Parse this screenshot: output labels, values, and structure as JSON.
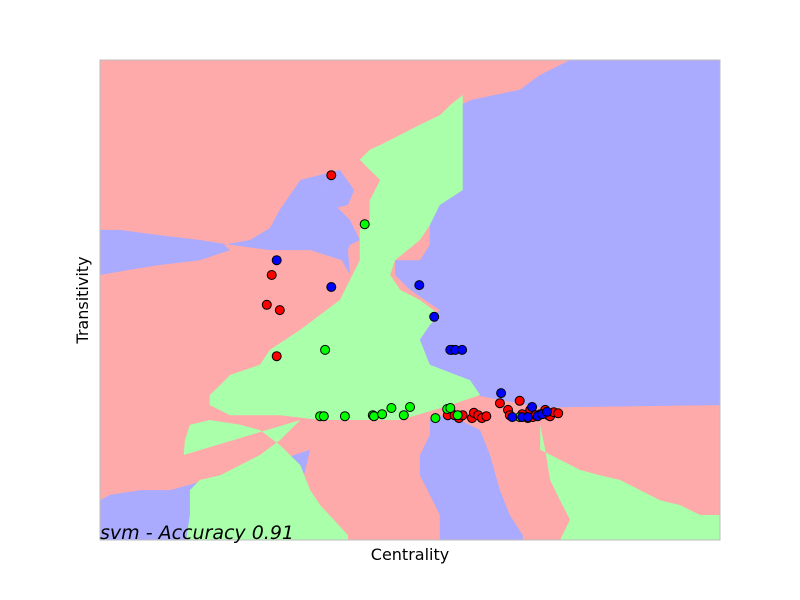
{
  "chart_data": {
    "type": "scatter",
    "title": "",
    "xlabel": "Centrality",
    "ylabel": "Transitivity",
    "annotation": "svm - Accuracy 0.91",
    "xticks_visible": false,
    "yticks_visible": false,
    "grid": false,
    "legend": "none",
    "xlim": [
      0,
      1
    ],
    "ylim": [
      0,
      1
    ],
    "class_colors": {
      "red": "#ff0000",
      "green": "#00ff00",
      "blue": "#0000ff"
    },
    "region_colors": {
      "red": "#ffaaaa",
      "green": "#aaffaa",
      "blue": "#aaaaff"
    },
    "decision_regions": [
      {
        "class": "blue",
        "polygon": [
          [
            0.758,
            1
          ],
          [
            1,
            1
          ],
          [
            1,
            0.281
          ],
          [
            0.71,
            0.276
          ],
          [
            0.613,
            0.3
          ],
          [
            0.548,
            0.323
          ],
          [
            0.516,
            0.344
          ],
          [
            0.5,
            0.417
          ],
          [
            0.516,
            0.448
          ],
          [
            0.548,
            0.479
          ],
          [
            0.5,
            0.521
          ],
          [
            0.476,
            0.552
          ],
          [
            0.476,
            0.583
          ],
          [
            0.516,
            0.583
          ],
          [
            0.532,
            0.615
          ],
          [
            0.532,
            0.656
          ],
          [
            0.516,
            0.698
          ],
          [
            0.548,
            0.729
          ],
          [
            0.58,
            0.76
          ],
          [
            0.581,
            0.813
          ],
          [
            0.581,
            0.906
          ],
          [
            0.6,
            0.917
          ],
          [
            0.677,
            0.938
          ],
          [
            0.71,
            0.969
          ]
        ]
      },
      {
        "class": "blue",
        "polygon": [
          [
            0.323,
            0.75
          ],
          [
            0.387,
            0.771
          ],
          [
            0.41,
            0.729
          ],
          [
            0.4,
            0.698
          ],
          [
            0.368,
            0.688
          ],
          [
            0.355,
            0.656
          ],
          [
            0.339,
            0.604
          ],
          [
            0.39,
            0.583
          ],
          [
            0.403,
            0.552
          ],
          [
            0.4,
            0.604
          ],
          [
            0.41,
            0.646
          ],
          [
            0.371,
            0.708
          ],
          [
            0.355,
            0.74
          ]
        ]
      },
      {
        "class": "blue",
        "polygon": [
          [
            0,
            0.646
          ],
          [
            0.065,
            0.635
          ],
          [
            0.129,
            0.625
          ],
          [
            0.2,
            0.615
          ],
          [
            0.242,
            0.625
          ],
          [
            0.274,
            0.65
          ],
          [
            0.29,
            0.688
          ],
          [
            0.323,
            0.75
          ],
          [
            0.355,
            0.74
          ],
          [
            0.371,
            0.708
          ],
          [
            0.403,
            0.667
          ],
          [
            0.419,
            0.625
          ],
          [
            0.387,
            0.604
          ],
          [
            0.339,
            0.604
          ],
          [
            0.274,
            0.604
          ],
          [
            0.21,
            0.615
          ],
          [
            0.161,
            0.625
          ],
          [
            0.129,
            0.625
          ],
          [
            0.081,
            0.625
          ],
          [
            0.032,
            0.625
          ],
          [
            0,
            0.625
          ]
        ]
      },
      {
        "class": "blue",
        "polygon": [
          [
            0,
            0.646
          ],
          [
            0.032,
            0.646
          ],
          [
            0.097,
            0.635
          ],
          [
            0.161,
            0.625
          ],
          [
            0.2,
            0.615
          ],
          [
            0.21,
            0.604
          ],
          [
            0.161,
            0.583
          ],
          [
            0.097,
            0.573
          ],
          [
            0.048,
            0.563
          ],
          [
            0,
            0.552
          ]
        ]
      },
      {
        "class": "blue",
        "polygon": [
          [
            0,
            0
          ],
          [
            0.4,
            0
          ],
          [
            0.4,
            0.01
          ],
          [
            0.323,
            0.104
          ],
          [
            0.339,
            0.188
          ],
          [
            0.29,
            0.167
          ],
          [
            0.194,
            0.135
          ],
          [
            0.145,
            0.115
          ],
          [
            0.113,
            0.104
          ],
          [
            0.065,
            0.104
          ],
          [
            0.016,
            0.094
          ],
          [
            0,
            0.083
          ]
        ]
      },
      {
        "class": "blue",
        "polygon": [
          [
            0.548,
            0
          ],
          [
            0.682,
            0
          ],
          [
            0.682,
            0.01
          ],
          [
            0.661,
            0.052
          ],
          [
            0.645,
            0.104
          ],
          [
            0.629,
            0.177
          ],
          [
            0.613,
            0.229
          ],
          [
            0.58,
            0.25
          ],
          [
            0.548,
            0.26
          ],
          [
            0.532,
            0.25
          ],
          [
            0.532,
            0.219
          ],
          [
            0.516,
            0.177
          ],
          [
            0.516,
            0.135
          ],
          [
            0.532,
            0.094
          ],
          [
            0.548,
            0.052
          ]
        ]
      },
      {
        "class": "green",
        "polygon": [
          [
            0.585,
            0.927
          ],
          [
            0.585,
            0.729
          ],
          [
            0.548,
            0.698
          ],
          [
            0.532,
            0.656
          ],
          [
            0.516,
            0.625
          ],
          [
            0.476,
            0.583
          ],
          [
            0.468,
            0.552
          ],
          [
            0.484,
            0.521
          ],
          [
            0.516,
            0.5
          ],
          [
            0.548,
            0.469
          ],
          [
            0.532,
            0.448
          ],
          [
            0.516,
            0.417
          ],
          [
            0.532,
            0.365
          ],
          [
            0.597,
            0.333
          ],
          [
            0.613,
            0.302
          ],
          [
            0.565,
            0.281
          ],
          [
            0.484,
            0.25
          ],
          [
            0.403,
            0.25
          ],
          [
            0.355,
            0.25
          ],
          [
            0.29,
            0.26
          ],
          [
            0.258,
            0.26
          ],
          [
            0.21,
            0.26
          ],
          [
            0.177,
            0.281
          ],
          [
            0.177,
            0.302
          ],
          [
            0.194,
            0.323
          ],
          [
            0.21,
            0.344
          ],
          [
            0.258,
            0.365
          ],
          [
            0.274,
            0.396
          ],
          [
            0.323,
            0.438
          ],
          [
            0.387,
            0.5
          ],
          [
            0.419,
            0.583
          ],
          [
            0.419,
            0.646
          ],
          [
            0.435,
            0.667
          ],
          [
            0.435,
            0.708
          ],
          [
            0.452,
            0.75
          ],
          [
            0.435,
            0.771
          ],
          [
            0.419,
            0.792
          ],
          [
            0.435,
            0.813
          ],
          [
            0.452,
            0.823
          ],
          [
            0.484,
            0.844
          ],
          [
            0.516,
            0.865
          ],
          [
            0.548,
            0.885
          ],
          [
            0.565,
            0.906
          ]
        ]
      },
      {
        "class": "green",
        "polygon": [
          [
            0.135,
            0.177
          ],
          [
            0.323,
            0.25
          ],
          [
            0.29,
            0.208
          ],
          [
            0.258,
            0.177
          ],
          [
            0.226,
            0.156
          ],
          [
            0.194,
            0.135
          ],
          [
            0.161,
            0.125
          ],
          [
            0.145,
            0.104
          ],
          [
            0.145,
            0.052
          ],
          [
            0.139,
            0
          ],
          [
            0.4,
            0
          ],
          [
            0.4,
            0.01
          ],
          [
            0.355,
            0.073
          ],
          [
            0.339,
            0.104
          ],
          [
            0.323,
            0.156
          ],
          [
            0.29,
            0.198
          ],
          [
            0.258,
            0.229
          ],
          [
            0.226,
            0.24
          ],
          [
            0.177,
            0.25
          ],
          [
            0.145,
            0.24
          ],
          [
            0.137,
            0.208
          ]
        ]
      },
      {
        "class": "green",
        "polygon": [
          [
            0.71,
            0.24
          ],
          [
            0.71,
            0.188
          ],
          [
            0.742,
            0.167
          ],
          [
            0.774,
            0.146
          ],
          [
            0.806,
            0.135
          ],
          [
            0.839,
            0.125
          ],
          [
            0.871,
            0.104
          ],
          [
            0.903,
            0.083
          ],
          [
            0.935,
            0.073
          ],
          [
            0.968,
            0.052
          ],
          [
            1,
            0.052
          ],
          [
            1,
            0
          ],
          [
            0.742,
            0
          ],
          [
            0.758,
            0.042
          ],
          [
            0.742,
            0.083
          ],
          [
            0.726,
            0.125
          ],
          [
            0.718,
            0.188
          ]
        ]
      }
    ],
    "series": [
      {
        "name": "",
        "color": "#ff0000",
        "x": [
          0.373,
          0.277,
          0.269,
          0.29,
          0.285,
          0.565,
          0.561,
          0.572,
          0.579,
          0.585,
          0.6,
          0.603,
          0.61,
          0.616,
          0.623,
          0.645,
          0.658,
          0.661,
          0.677,
          0.681,
          0.69,
          0.694,
          0.698,
          0.703,
          0.71,
          0.718,
          0.723,
          0.726,
          0.732,
          0.739
        ],
        "y": [
          0.76,
          0.552,
          0.49,
          0.479,
          0.383,
          0.269,
          0.26,
          0.26,
          0.254,
          0.26,
          0.254,
          0.265,
          0.26,
          0.254,
          0.258,
          0.285,
          0.271,
          0.26,
          0.29,
          0.262,
          0.254,
          0.271,
          0.256,
          0.26,
          0.262,
          0.271,
          0.26,
          0.258,
          0.266,
          0.264
        ]
      },
      {
        "name": "",
        "color": "#00ff00",
        "x": [
          0.427,
          0.363,
          0.355,
          0.361,
          0.395,
          0.44,
          0.442,
          0.455,
          0.47,
          0.49,
          0.5,
          0.541,
          0.568,
          0.56,
          0.565,
          0.577,
          0.677
        ],
        "y": [
          0.658,
          0.396,
          0.258,
          0.258,
          0.258,
          0.26,
          0.258,
          0.262,
          0.275,
          0.26,
          0.277,
          0.254,
          0.396,
          0.273,
          0.275,
          0.26,
          0.256
        ]
      },
      {
        "name": "",
        "color": "#0000ff",
        "x": [
          0.285,
          0.373,
          0.515,
          0.539,
          0.565,
          0.573,
          0.584,
          0.647,
          0.665,
          0.681,
          0.69,
          0.697,
          0.706,
          0.713,
          0.721
        ],
        "y": [
          0.583,
          0.527,
          0.531,
          0.465,
          0.396,
          0.396,
          0.396,
          0.306,
          0.256,
          0.256,
          0.256,
          0.277,
          0.258,
          0.262,
          0.267
        ]
      }
    ]
  }
}
